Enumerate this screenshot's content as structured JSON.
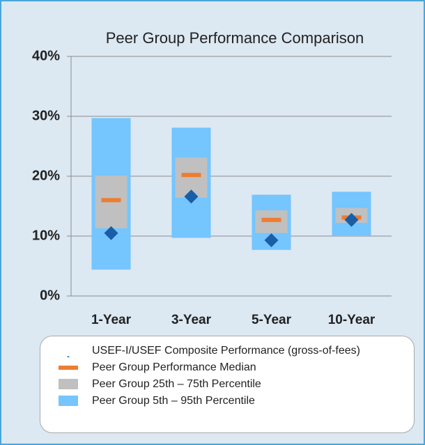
{
  "chart_data": {
    "type": "box",
    "title": "Peer Group Performance Comparison",
    "categories": [
      "1-Year",
      "3-Year",
      "5-Year",
      "10-Year"
    ],
    "ylim": [
      0,
      40
    ],
    "yticks": [
      {
        "value": 0,
        "label": "0%"
      },
      {
        "value": 10,
        "label": "10%"
      },
      {
        "value": 20,
        "label": "20%"
      },
      {
        "value": 30,
        "label": "30%"
      },
      {
        "value": 40,
        "label": "40%"
      }
    ],
    "grid": true,
    "series": [
      {
        "name": "USEF-I/USEF Composite Performance (gross-of-fees)",
        "color": "#1a5ea8",
        "marker": "diamond",
        "values": [
          10.5,
          16.6,
          9.3,
          12.7
        ]
      },
      {
        "name": "Peer Group Performance Median",
        "color": "#ed7d31",
        "marker": "dash",
        "values": [
          16.0,
          20.2,
          12.7,
          13.1
        ]
      },
      {
        "name": "Peer Group 25th – 75th Percentile",
        "color": "#c0c0c0",
        "marker": "range",
        "values": [
          [
            11.3,
            20.1
          ],
          [
            16.4,
            23.1
          ],
          [
            10.5,
            14.3
          ],
          [
            12.2,
            14.7
          ]
        ]
      },
      {
        "name": "Peer Group 5th – 95th Percentile",
        "color": "#75c5ff",
        "marker": "range",
        "values": [
          [
            4.4,
            29.7
          ],
          [
            9.7,
            28.1
          ],
          [
            7.7,
            16.9
          ],
          [
            10.0,
            17.4
          ]
        ]
      }
    ]
  }
}
